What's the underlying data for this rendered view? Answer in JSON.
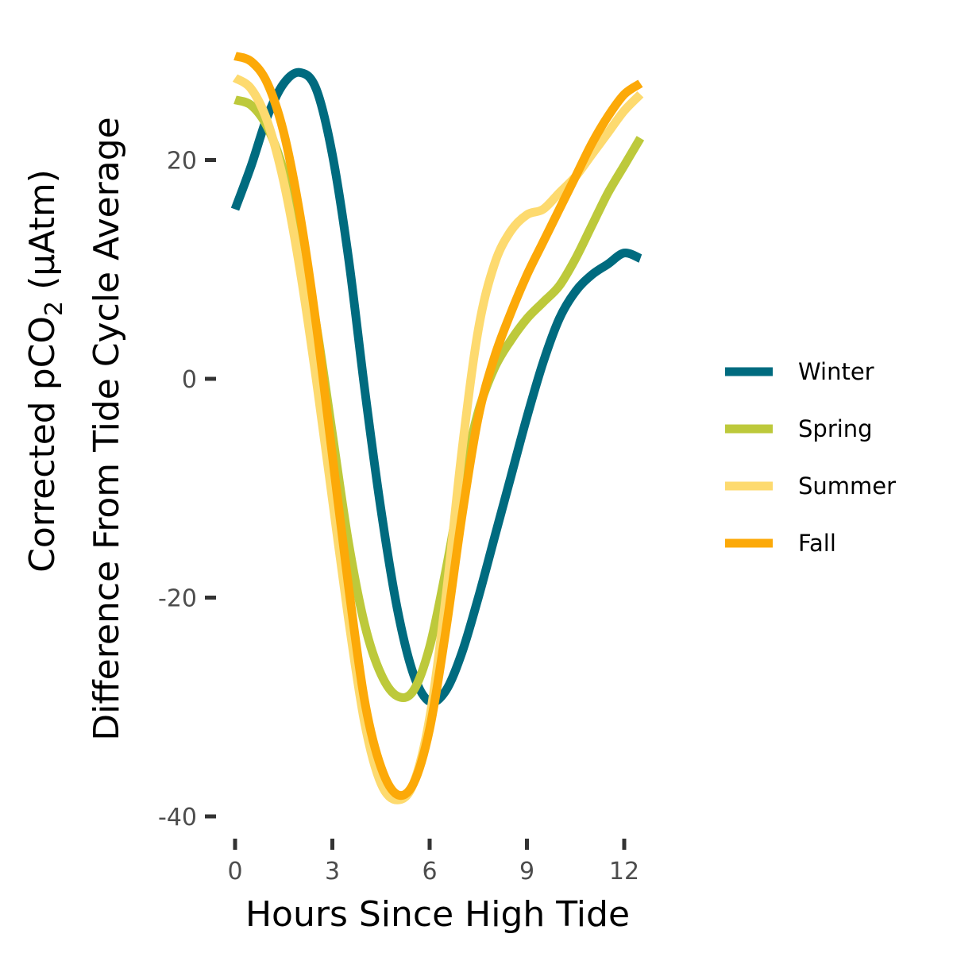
{
  "chart_data": {
    "type": "line",
    "title": "",
    "xlabel": "Hours Since High Tide",
    "ylabel_line1_main": "Corrected pCO",
    "ylabel_line1_sub": "2",
    "ylabel_line1_tail": " (μAtm)",
    "ylabel_line2": "Difference From Tide Cycle Average",
    "xlim": [
      -0.8,
      13
    ],
    "ylim": [
      -42,
      31
    ],
    "x_ticks": [
      0,
      3,
      6,
      9,
      12
    ],
    "x_tick_labels": [
      "0",
      "3",
      "6",
      "9",
      "12"
    ],
    "y_ticks": [
      20,
      0,
      -20,
      -40
    ],
    "y_tick_labels": [
      "20",
      "0",
      "-20",
      "-40"
    ],
    "grid": false,
    "legend_position": "right",
    "series": [
      {
        "name": "Winter",
        "color": "#006B7F",
        "x": [
          0,
          0.5,
          1,
          1.5,
          2,
          2.5,
          3,
          3.5,
          4,
          4.5,
          5,
          5.5,
          6,
          6.5,
          7,
          7.5,
          8,
          8.5,
          9,
          9.5,
          10,
          10.5,
          11,
          11.5,
          12,
          12.5
        ],
        "y": [
          15.5,
          19.5,
          24,
          27,
          28,
          26.5,
          20.5,
          11,
          -1,
          -12,
          -21,
          -27,
          -29.5,
          -28.5,
          -25,
          -20,
          -14.5,
          -9,
          -3.5,
          1.5,
          5.5,
          8,
          9.5,
          10.5,
          11.5,
          11
        ]
      },
      {
        "name": "Spring",
        "color": "#BDC93B",
        "x": [
          0,
          0.5,
          1,
          1.5,
          2,
          2.5,
          3,
          3.5,
          4,
          4.5,
          5,
          5.5,
          6,
          6.5,
          7,
          7.5,
          8,
          8.5,
          9,
          9.5,
          10,
          10.5,
          11,
          11.5,
          12,
          12.5
        ],
        "y": [
          25.5,
          25,
          23,
          19,
          13,
          5,
          -5,
          -15,
          -22.5,
          -27,
          -29,
          -28.5,
          -24.5,
          -17.5,
          -9.5,
          -3,
          1,
          3.5,
          5.5,
          7,
          8.5,
          11,
          14,
          17,
          19.5,
          22
        ]
      },
      {
        "name": "Summer",
        "color": "#FDDA6F",
        "x": [
          0,
          0.5,
          1,
          1.5,
          2,
          2.5,
          3,
          3.5,
          4,
          4.5,
          5,
          5.5,
          6,
          6.5,
          7,
          7.5,
          8,
          8.5,
          9,
          9.5,
          10,
          10.5,
          11,
          11.5,
          12,
          12.5
        ],
        "y": [
          27.5,
          26.5,
          23.5,
          18,
          10,
          0,
          -11,
          -22,
          -31.5,
          -37,
          -38.5,
          -37,
          -31,
          -20,
          -6.5,
          4.5,
          10.5,
          13.5,
          15,
          15.5,
          17,
          18.5,
          20.5,
          22.5,
          24.5,
          26
        ]
      },
      {
        "name": "Fall",
        "color": "#FCA908",
        "x": [
          0,
          0.5,
          1,
          1.5,
          2,
          2.5,
          3,
          3.5,
          4,
          4.5,
          5,
          5.5,
          6,
          6.5,
          7,
          7.5,
          8,
          8.5,
          9,
          9.5,
          10,
          10.5,
          11,
          11.5,
          12,
          12.5
        ],
        "y": [
          29.5,
          29,
          27,
          22.5,
          15,
          5,
          -7,
          -19,
          -29.5,
          -35.5,
          -38,
          -37,
          -32,
          -23,
          -12.5,
          -3.5,
          2,
          6,
          9.5,
          12.5,
          15.5,
          18.5,
          21.5,
          24,
          26,
          27
        ]
      }
    ]
  }
}
